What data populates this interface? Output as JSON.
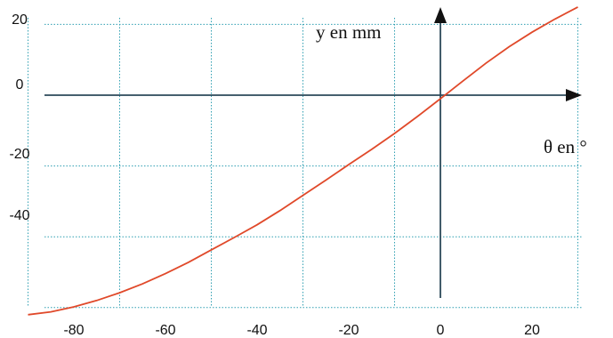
{
  "chart_data": {
    "type": "line",
    "xlabel": "θ en °",
    "ylabel": "y en mm",
    "xlim": [
      -90,
      30
    ],
    "ylim": [
      -60,
      24
    ],
    "grid": true,
    "x_ticks": [
      -80,
      -60,
      -40,
      -20,
      0,
      20
    ],
    "x_tick_labels": [
      "-80",
      "-60",
      "-40",
      "-20",
      "0",
      "20"
    ],
    "y_ticks": [
      20,
      0,
      -20,
      -40
    ],
    "y_tick_labels": [
      "20",
      "0",
      "-20",
      "-40"
    ],
    "series": [
      {
        "color": "#e0492a",
        "x": [
          -90,
          -85,
          -80,
          -75,
          -70,
          -65,
          -60,
          -55,
          -50,
          -45,
          -40,
          -35,
          -30,
          -25,
          -20,
          -15,
          -10,
          -5,
          0,
          5,
          10,
          15,
          20,
          25,
          30
        ],
        "y": [
          -62.0,
          -61.2,
          -59.8,
          -58.0,
          -55.8,
          -53.3,
          -50.4,
          -47.2,
          -43.7,
          -40.2,
          -36.6,
          -32.6,
          -28.3,
          -24.0,
          -19.6,
          -15.3,
          -10.8,
          -6.0,
          -1.0,
          4.1,
          9.1,
          13.7,
          17.8,
          21.5,
          24.9
        ]
      }
    ]
  },
  "colors": {
    "grid": "#2f9fb2",
    "axis": "#2c4a5a",
    "curve": "#e0492a"
  }
}
